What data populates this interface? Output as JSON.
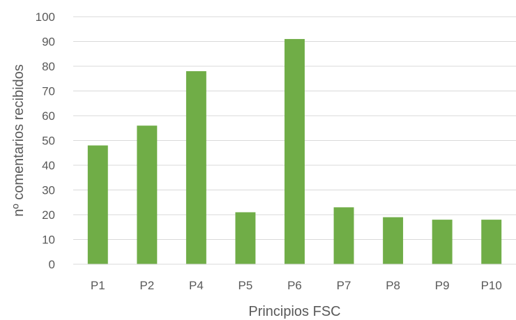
{
  "chart_data": {
    "type": "bar",
    "title": "",
    "xlabel": "Principios FSC",
    "ylabel": "nº comentarios recibidos",
    "categories": [
      "P1",
      "P2",
      "P4",
      "P5",
      "P6",
      "P7",
      "P8",
      "P9",
      "P10"
    ],
    "values": [
      48,
      56,
      78,
      21,
      91,
      23,
      19,
      18,
      18
    ],
    "ylim": [
      0,
      100
    ],
    "yticks": [
      0,
      10,
      20,
      30,
      40,
      50,
      60,
      70,
      80,
      90,
      100
    ],
    "grid": true,
    "legend": "none",
    "colors": {
      "bar": "#70ad47",
      "grid": "#d9d9d9",
      "text": "#595959"
    }
  }
}
